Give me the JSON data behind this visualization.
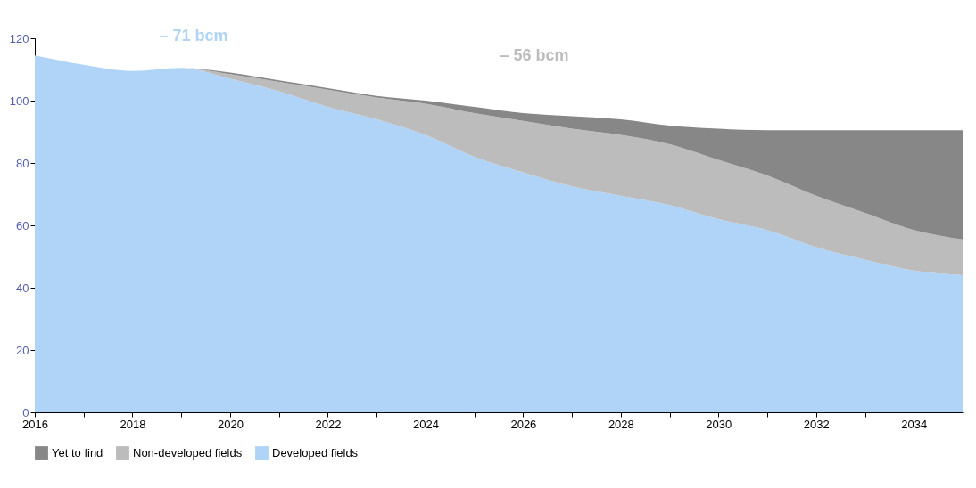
{
  "chart_data": {
    "type": "area",
    "stacked": true,
    "x": [
      2016,
      2017,
      2018,
      2019,
      2020,
      2021,
      2022,
      2023,
      2024,
      2025,
      2026,
      2027,
      2028,
      2029,
      2030,
      2031,
      2032,
      2033,
      2034,
      2035
    ],
    "series": [
      {
        "name": "Developed fields",
        "color": "#afd4f7",
        "values": [
          114.5,
          111.5,
          109.5,
          110.5,
          107,
          103,
          98,
          94,
          89,
          82,
          77,
          72.5,
          69.5,
          66.5,
          62,
          58.5,
          53,
          49,
          45.5,
          44
        ]
      },
      {
        "name": "Non-developed fields",
        "color": "#bcbcbc",
        "values": [
          0,
          0,
          0,
          0,
          1.5,
          3,
          5.5,
          7,
          10,
          14,
          16.5,
          18.5,
          19.5,
          19.5,
          19,
          17.5,
          16.5,
          15,
          13,
          11.5
        ]
      },
      {
        "name": "Yet to find",
        "color": "#878787",
        "values": [
          0,
          0,
          0,
          0,
          0.5,
          0.5,
          0.5,
          0.5,
          1,
          2,
          2.5,
          4,
          5,
          6,
          10,
          14.5,
          21,
          26.5,
          32,
          35
        ]
      }
    ],
    "xlim": [
      2016,
      2035
    ],
    "xticks": [
      2016,
      {
        "value": 2017,
        "label": null
      },
      2018,
      {
        "value": 2019,
        "label": null
      },
      2020,
      {
        "value": 2021,
        "label": null
      },
      2022,
      {
        "value": 2023,
        "label": null
      },
      2024,
      {
        "value": 2025,
        "label": null
      },
      2026,
      {
        "value": 2027,
        "label": null
      },
      2028,
      {
        "value": 2029,
        "label": null
      },
      2030,
      {
        "value": 2031,
        "label": null
      },
      2032,
      {
        "value": 2033,
        "label": null
      },
      2034
    ],
    "ylim": [
      0,
      120
    ],
    "yticks": [
      0,
      20,
      40,
      60,
      80,
      100,
      120
    ],
    "grid": false,
    "legend": "bottom left",
    "annotations": [
      "– 71 bcm",
      "– 56 bcm"
    ]
  }
}
